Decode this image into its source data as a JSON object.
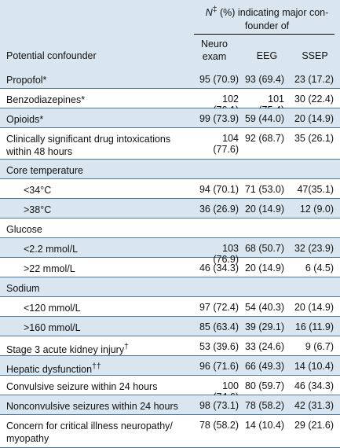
{
  "header": {
    "group_pre": "N",
    "group_sup": "‡",
    "group_text": " (%) indicating major con-founder of",
    "col_confounder": "Potential confounder",
    "col_neuro": "Neuro exam",
    "col_eeg": "EEG",
    "col_ssep": "SSEP"
  },
  "rows": [
    {
      "label": "Propofol*",
      "neuro": "95 (70.9)",
      "eeg": "93 (69.4)",
      "ssep": "23 (17.2)"
    },
    {
      "label": "Benzodiazepines*",
      "neuro": "102 (76.1)",
      "eeg": "101 (75.4)",
      "ssep": "30 (22.4)"
    },
    {
      "label": "Opioids*",
      "neuro": "99 (73.9)",
      "eeg": "59 (44.0)",
      "ssep": "20 (14.9)"
    },
    {
      "label": "Clinically significant drug intoxications within 48 hours",
      "neuro": "104 (77.6)",
      "eeg": "92 (68.7)",
      "ssep": "35 (26.1)"
    },
    {
      "label": "Core temperature",
      "neuro": "",
      "eeg": "",
      "ssep": ""
    },
    {
      "label": "<34°C",
      "neuro": "94 (70.1)",
      "eeg": "71 (53.0)",
      "ssep": "47(35.1)"
    },
    {
      "label": ">38°C",
      "neuro": "36 (26.9)",
      "eeg": "20 (14.9)",
      "ssep": "12 (9.0)"
    },
    {
      "label": "Glucose",
      "neuro": "",
      "eeg": "",
      "ssep": ""
    },
    {
      "label": "<2.2 mmol/L",
      "neuro": "103 (76.9)",
      "eeg": "68 (50.7)",
      "ssep": "32 (23.9)"
    },
    {
      "label": ">22 mmol/L",
      "neuro": "46 (34.3)",
      "eeg": "20 (14.9)",
      "ssep": "6 (4.5)"
    },
    {
      "label": "Sodium",
      "neuro": "",
      "eeg": "",
      "ssep": ""
    },
    {
      "label": "<120 mmol/L",
      "neuro": "97 (72.4)",
      "eeg": "54 (40.3)",
      "ssep": "20 (14.9)"
    },
    {
      "label": ">160 mmol/L",
      "neuro": "85 (63.4)",
      "eeg": "39 (29.1)",
      "ssep": "16 (11.9)"
    },
    {
      "label": "Stage 3 acute kidney injury",
      "sup": "†",
      "neuro": "53 (39.6)",
      "eeg": "33 (24.6)",
      "ssep": "9 (6.7)"
    },
    {
      "label": "Hepatic dysfunction",
      "sup": "††",
      "neuro": "96 (71.6)",
      "eeg": "66 (49.3)",
      "ssep": "14 (10.4)"
    },
    {
      "label": "Convulsive seizure within 24 hours",
      "neuro": "100 (74.6)",
      "eeg": "80 (59.7)",
      "ssep": "46 (34.3)"
    },
    {
      "label": "Nonconvulsive seizures within 24 hours",
      "neuro": "98 (73.1)",
      "eeg": "78 (58.2)",
      "ssep": "42 (31.3)"
    },
    {
      "label": "Concern for critical illness neuropathy/ myopathy",
      "neuro": "78 (58.2)",
      "eeg": "14 (10.4)",
      "ssep": "29 (21.6)"
    }
  ]
}
